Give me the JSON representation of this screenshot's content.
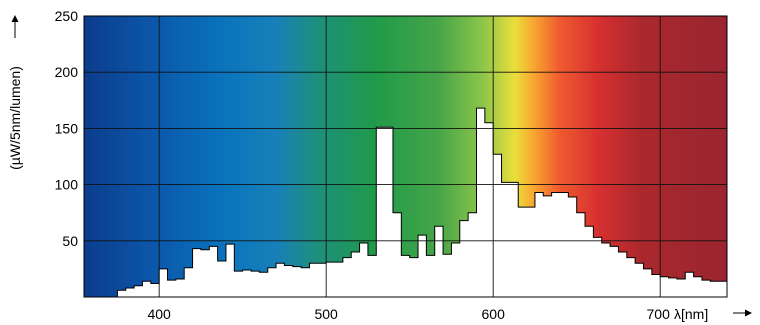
{
  "chart_data": {
    "type": "area",
    "title": "",
    "xlabel": "λ[nm]",
    "ylabel": "(µW/5nm/lumen)",
    "xlim": [
      355,
      740
    ],
    "ylim": [
      0,
      250
    ],
    "grid": true,
    "x_ticks": [
      "400",
      "500",
      "600",
      "700"
    ],
    "y_ticks": [
      "50",
      "100",
      "150",
      "200",
      "250"
    ],
    "background": "visible-spectrum color gradient (violet/blue to red)",
    "series": [
      {
        "x": [
          375,
          380,
          385,
          390,
          395,
          400,
          405,
          410,
          415,
          420,
          425,
          430,
          435,
          440,
          445,
          450,
          455,
          460,
          465,
          470,
          475,
          480,
          485,
          490,
          495,
          500,
          505,
          510,
          515,
          520,
          525,
          530,
          535,
          540,
          545,
          550,
          555,
          560,
          565,
          570,
          575,
          580,
          585,
          590,
          595,
          600,
          605,
          610,
          615,
          620,
          625,
          630,
          635,
          640,
          645,
          650,
          655,
          660,
          665,
          670,
          675,
          680,
          685,
          690,
          695,
          700,
          705,
          710,
          715,
          720,
          725,
          730,
          735
        ],
        "y": [
          6,
          8,
          10,
          14,
          12,
          25,
          15,
          16,
          26,
          43,
          42,
          45,
          32,
          47,
          23,
          24,
          23,
          22,
          26,
          30,
          28,
          27,
          26,
          30,
          30,
          31,
          31,
          35,
          40,
          48,
          37,
          151,
          151,
          75,
          37,
          35,
          55,
          37,
          63,
          38,
          48,
          68,
          75,
          168,
          155,
          127,
          102,
          102,
          80,
          80,
          93,
          90,
          93,
          93,
          89,
          75,
          63,
          53,
          48,
          45,
          40,
          35,
          30,
          25,
          20,
          18,
          17,
          16,
          22,
          18,
          15,
          14,
          14
        ]
      }
    ]
  }
}
